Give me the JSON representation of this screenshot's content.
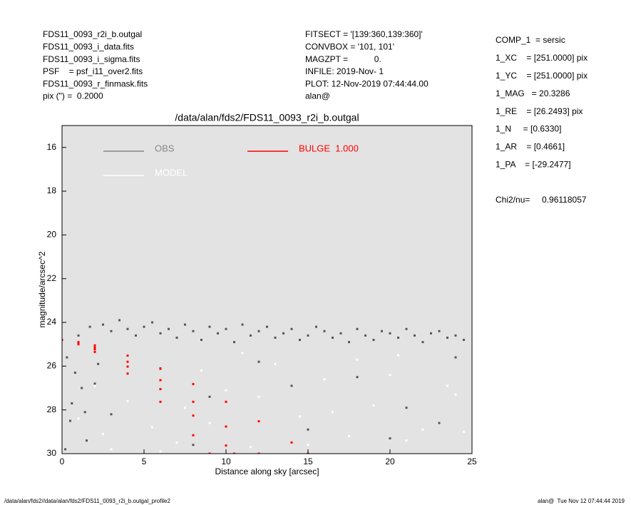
{
  "header": {
    "left": [
      "FDS11_0093_r2i_b.outgal",
      "FDS11_0093_i_data.fits",
      "FDS11_0093_i_sigma.fits",
      "PSF    = psf_i11_over2.fits",
      "FDS11_0093_r_finmask.fits",
      "pix (\") =  0.2000"
    ],
    "middle": [
      "FITSECT = '[139:360,139:360]'",
      "CONVBOX = '101, 101'",
      "MAGZPT =           0.",
      "INFILE: 2019-Nov- 1",
      "PLOT: 12-Nov-2019 07:44:44.00",
      "alan@"
    ],
    "right": [
      "COMP_1  = sersic",
      "1_XC    = [251.0000] pix",
      "1_YC    = [251.0000] pix",
      "1_MAG   = 20.3286",
      "1_RE    = [26.2493] pix",
      "1_N     = [0.6330]",
      "1_AR    = [0.4661]",
      "1_PA    = [-29.2477]"
    ],
    "chi2": "Chi2/nu=     0.96118057"
  },
  "footer": {
    "left": "/data/alan/fds2//data/alan/fds2/FDS11_0093_r2i_b.outgal_profile2",
    "right": "alan@  Tue Nov 12 07:44:44 2019"
  },
  "chart_data": {
    "type": "scatter",
    "title": "/data/alan/fds2/FDS11_0093_r2i_b.outgal",
    "x_label": "Distance along sky [arcsec]",
    "y_label": "magnitude/arcsec^2",
    "xlim": [
      0,
      25
    ],
    "xticks": [
      0,
      5,
      10,
      15,
      20,
      25
    ],
    "ylim": [
      30,
      15
    ],
    "yticks": [
      16,
      18,
      20,
      22,
      24,
      26,
      28,
      30
    ],
    "background": "#e3e3e3",
    "series": [
      {
        "name": "OBS",
        "color": "#555555",
        "x": [
          0.3,
          0.8,
          1.2,
          0.5,
          1.5,
          2.0,
          0.2,
          1.0,
          1.7,
          2.5,
          3.0,
          3.5,
          4.0,
          4.5,
          5.0,
          5.5,
          6.0,
          6.5,
          7.0,
          7.5,
          8.0,
          8.5,
          9.0,
          9.5,
          10.0,
          10.5,
          11.0,
          11.5,
          12.0,
          12.5,
          13.0,
          13.5,
          14.0,
          14.5,
          15.0,
          15.5,
          16.0,
          16.5,
          17.0,
          17.5,
          18.0,
          18.5,
          19.0,
          19.5,
          20.0,
          20.5,
          21.0,
          21.5,
          22.0,
          22.5,
          23.0,
          23.5,
          24.0,
          24.5,
          6.0,
          9.0,
          12.0,
          15.0,
          18.0,
          21.0,
          24.0,
          3.0,
          8.0,
          14.0,
          20.0,
          23.0,
          0.6,
          1.4,
          2.2
        ],
        "values": [
          25.6,
          26.3,
          27.0,
          28.5,
          29.4,
          26.8,
          29.8,
          24.6,
          24.2,
          24.1,
          24.4,
          23.9,
          24.3,
          24.6,
          24.2,
          24.0,
          24.5,
          24.3,
          24.7,
          24.1,
          24.4,
          24.8,
          24.2,
          24.5,
          24.3,
          24.9,
          24.1,
          24.6,
          24.4,
          24.2,
          24.7,
          24.5,
          24.3,
          24.8,
          24.6,
          24.2,
          24.4,
          24.7,
          24.5,
          24.9,
          24.3,
          24.6,
          24.8,
          24.4,
          24.5,
          24.7,
          24.3,
          24.6,
          24.9,
          24.5,
          24.4,
          24.7,
          24.6,
          24.8,
          26.1,
          27.4,
          25.8,
          28.9,
          26.5,
          27.9,
          25.6,
          28.2,
          29.6,
          26.9,
          29.3,
          28.6,
          27.7,
          28.1,
          25.9
        ]
      },
      {
        "name": "MODEL",
        "color": "#ffffff",
        "x": [
          1.0,
          2.5,
          4.0,
          5.5,
          7.0,
          8.5,
          10.0,
          11.5,
          13.0,
          14.5,
          16.0,
          17.5,
          19.0,
          20.5,
          22.0,
          23.5,
          3.0,
          6.0,
          9.0,
          12.0,
          15.0,
          18.0,
          21.0,
          24.0,
          2.0,
          7.5,
          11.0,
          16.5,
          20.0,
          24.5
        ],
        "values": [
          28.4,
          29.1,
          27.6,
          28.8,
          29.5,
          26.2,
          27.1,
          29.7,
          25.9,
          28.3,
          26.6,
          29.2,
          27.8,
          25.5,
          28.9,
          26.9,
          29.8,
          29.9,
          28.6,
          27.4,
          29.6,
          25.7,
          29.4,
          27.3,
          26.9,
          27.9,
          25.4,
          28.1,
          26.4,
          29.0
        ]
      },
      {
        "name": "BULGE  1.000",
        "color": "#ff0000",
        "x": [
          0,
          2,
          4,
          6,
          8,
          10,
          12,
          14,
          15,
          2,
          4,
          6,
          8,
          10,
          12,
          2,
          4,
          6,
          8,
          10,
          10.5,
          2,
          4,
          6,
          8,
          9,
          1,
          1,
          1
        ],
        "values": [
          24.8,
          25.05,
          25.52,
          26.12,
          26.82,
          27.63,
          28.52,
          29.49,
          30,
          25.15,
          25.8,
          26.64,
          27.63,
          28.76,
          30,
          25.23,
          26.02,
          27.05,
          28.26,
          29.63,
          30,
          25.35,
          26.34,
          27.63,
          29.16,
          30,
          24.9,
          24.95,
          25.0
        ]
      }
    ]
  }
}
